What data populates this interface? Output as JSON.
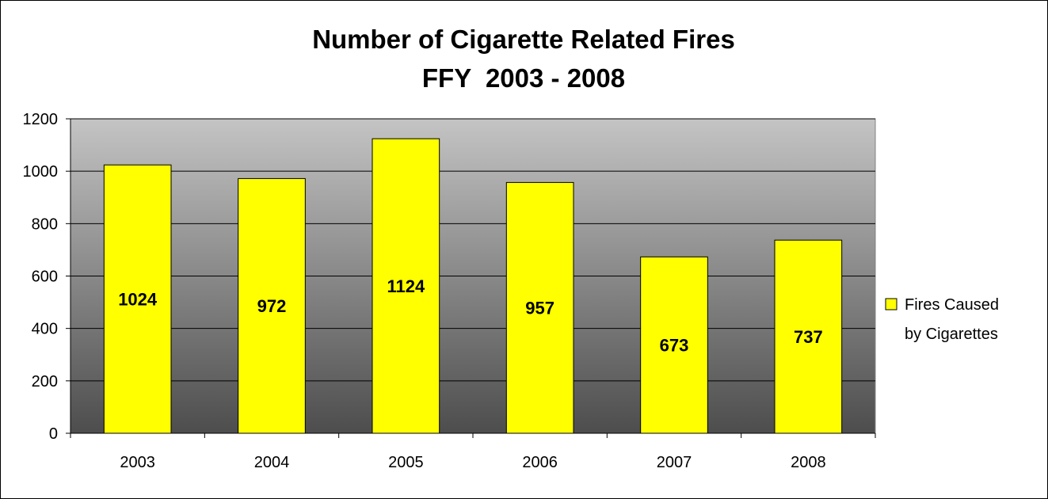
{
  "chart_data": {
    "type": "bar",
    "title": "Number of Cigarette Related Fires",
    "subtitle": "FFY  2003 - 2008",
    "categories": [
      "2003",
      "2004",
      "2005",
      "2006",
      "2007",
      "2008"
    ],
    "series": [
      {
        "name": "Fires Caused by Cigarettes",
        "name_lines": [
          "Fires Caused",
          "by Cigarettes"
        ],
        "values": [
          1024,
          972,
          1124,
          957,
          673,
          737
        ],
        "color": "#ffff00"
      }
    ],
    "data_labels": [
      "1024",
      "972",
      "1124",
      "957",
      "673",
      "737"
    ],
    "xlabel": "",
    "ylabel": "",
    "ylim": [
      0,
      1200
    ],
    "yticks": [
      "0",
      "200",
      "400",
      "600",
      "800",
      "1000",
      "1200"
    ],
    "grid": true,
    "legend": "right",
    "colors": {
      "bar": "#ffff00",
      "bar_stroke": "#000000",
      "plot_gradient_top": "#c4c4c4",
      "plot_gradient_bottom": "#4d4d4d",
      "gridline": "#000000"
    }
  }
}
